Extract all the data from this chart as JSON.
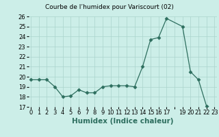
{
  "title": "Courbe de l’humidex pour Variscourt (02)",
  "xlabel": "Humidex (Indice chaleur)",
  "x_values": [
    0,
    1,
    2,
    3,
    4,
    5,
    6,
    7,
    8,
    9,
    10,
    11,
    12,
    13,
    14,
    15,
    16,
    17,
    19,
    20,
    21,
    22,
    23
  ],
  "y_values": [
    19.7,
    19.7,
    19.7,
    19.0,
    18.0,
    18.1,
    18.7,
    18.4,
    18.4,
    19.0,
    19.1,
    19.1,
    19.1,
    19.0,
    21.0,
    23.7,
    23.9,
    25.8,
    25.0,
    20.5,
    19.7,
    17.1,
    16.7
  ],
  "line_color": "#2d6e5e",
  "marker": "D",
  "marker_size": 2.5,
  "bg_color": "#cceee8",
  "grid_color": "#aad4cc",
  "ylim": [
    17,
    26
  ],
  "yticks": [
    17,
    18,
    19,
    20,
    21,
    22,
    23,
    24,
    25,
    26
  ],
  "xlim": [
    -0.3,
    23.3
  ],
  "title_fontsize": 6.5,
  "label_fontsize": 7.5,
  "tick_fontsize": 6
}
